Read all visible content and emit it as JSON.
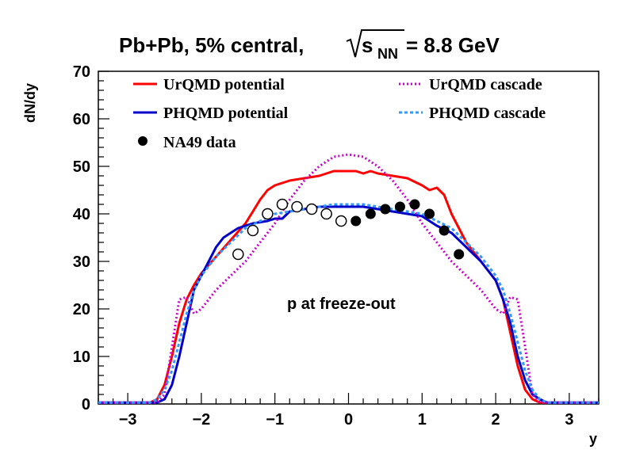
{
  "chart_data": {
    "type": "line",
    "title_main": "Pb+Pb, 5% central,",
    "title_sqrt_symbol": "s",
    "title_sqrt_sub": "NN",
    "title_tail": "= 8.8 GeV",
    "xlabel": "y",
    "ylabel": "dN/dy",
    "xlim": [
      -3.4,
      3.4
    ],
    "ylim": [
      0,
      70
    ],
    "x_ticks": [
      -3,
      -2,
      -1,
      0,
      1,
      2,
      3
    ],
    "x_tick_labels": [
      "−3",
      "−2",
      "−1",
      "0",
      "1",
      "2",
      "3"
    ],
    "y_ticks": [
      0,
      10,
      20,
      30,
      40,
      50,
      60,
      70
    ],
    "y_tick_labels": [
      "0",
      "10",
      "20",
      "30",
      "40",
      "50",
      "60",
      "70"
    ],
    "annotation": "p at freeze-out",
    "grid": false,
    "legend_placement": "top",
    "series": [
      {
        "name": "UrQMD potential",
        "color": "#ff0000",
        "style": "solid",
        "points": [
          [
            -3.4,
            0.3
          ],
          [
            -2.7,
            0.3
          ],
          [
            -2.6,
            1
          ],
          [
            -2.5,
            4
          ],
          [
            -2.4,
            10
          ],
          [
            -2.3,
            17
          ],
          [
            -2.2,
            22
          ],
          [
            -2.1,
            25
          ],
          [
            -2.0,
            27.5
          ],
          [
            -1.8,
            31
          ],
          [
            -1.6,
            34.5
          ],
          [
            -1.4,
            38
          ],
          [
            -1.3,
            40.5
          ],
          [
            -1.2,
            43
          ],
          [
            -1.1,
            45
          ],
          [
            -1.0,
            46
          ],
          [
            -0.8,
            47
          ],
          [
            -0.6,
            47.5
          ],
          [
            -0.4,
            48
          ],
          [
            -0.3,
            48.5
          ],
          [
            -0.2,
            49
          ],
          [
            0,
            49
          ],
          [
            0.1,
            49
          ],
          [
            0.2,
            48.5
          ],
          [
            0.3,
            49
          ],
          [
            0.4,
            48.5
          ],
          [
            0.6,
            48
          ],
          [
            0.8,
            47.5
          ],
          [
            1.0,
            46
          ],
          [
            1.1,
            45
          ],
          [
            1.2,
            45.5
          ],
          [
            1.3,
            44
          ],
          [
            1.4,
            40
          ],
          [
            1.5,
            37
          ],
          [
            1.6,
            34
          ],
          [
            1.8,
            30
          ],
          [
            2.0,
            26
          ],
          [
            2.1,
            22
          ],
          [
            2.2,
            15
          ],
          [
            2.3,
            8
          ],
          [
            2.4,
            3
          ],
          [
            2.5,
            1
          ],
          [
            2.6,
            0.3
          ],
          [
            3.4,
            0.3
          ]
        ]
      },
      {
        "name": "PHQMD potential",
        "color": "#0000c8",
        "style": "solid",
        "points": [
          [
            -3.4,
            0.3
          ],
          [
            -2.6,
            0.3
          ],
          [
            -2.5,
            1
          ],
          [
            -2.4,
            4
          ],
          [
            -2.3,
            10
          ],
          [
            -2.2,
            17
          ],
          [
            -2.1,
            24
          ],
          [
            -2.0,
            27
          ],
          [
            -1.9,
            30
          ],
          [
            -1.8,
            33
          ],
          [
            -1.7,
            35
          ],
          [
            -1.6,
            36
          ],
          [
            -1.5,
            37
          ],
          [
            -1.4,
            37.5
          ],
          [
            -1.3,
            38
          ],
          [
            -1.1,
            38.5
          ],
          [
            -1.0,
            39
          ],
          [
            -0.9,
            39
          ],
          [
            -0.8,
            40.5
          ],
          [
            -0.6,
            41
          ],
          [
            -0.4,
            41.5
          ],
          [
            -0.2,
            41.5
          ],
          [
            0,
            41.5
          ],
          [
            0.2,
            41.5
          ],
          [
            0.4,
            41
          ],
          [
            0.6,
            40.5
          ],
          [
            0.8,
            40
          ],
          [
            1.0,
            39.5
          ],
          [
            1.1,
            38.5
          ],
          [
            1.2,
            37.5
          ],
          [
            1.4,
            36
          ],
          [
            1.6,
            33
          ],
          [
            1.8,
            30
          ],
          [
            1.9,
            28
          ],
          [
            2.0,
            26
          ],
          [
            2.1,
            22
          ],
          [
            2.2,
            17
          ],
          [
            2.3,
            10
          ],
          [
            2.4,
            5
          ],
          [
            2.5,
            2
          ],
          [
            2.6,
            1
          ],
          [
            2.7,
            0.3
          ],
          [
            3.4,
            0.3
          ]
        ]
      },
      {
        "name": "UrQMD cascade",
        "color": "#cc00cc",
        "style": "dotted",
        "points": [
          [
            -3.4,
            0.3
          ],
          [
            -2.6,
            0.3
          ],
          [
            -2.5,
            2
          ],
          [
            -2.4,
            12
          ],
          [
            -2.3,
            22
          ],
          [
            -2.2,
            22.5
          ],
          [
            -2.1,
            19
          ],
          [
            -2.0,
            20
          ],
          [
            -1.8,
            24
          ],
          [
            -1.6,
            27
          ],
          [
            -1.4,
            30
          ],
          [
            -1.2,
            34
          ],
          [
            -1.0,
            38
          ],
          [
            -0.8,
            43
          ],
          [
            -0.6,
            47
          ],
          [
            -0.4,
            50
          ],
          [
            -0.2,
            52
          ],
          [
            0,
            52.5
          ],
          [
            0.2,
            52
          ],
          [
            0.4,
            50
          ],
          [
            0.6,
            47
          ],
          [
            0.8,
            43
          ],
          [
            1.0,
            38
          ],
          [
            1.2,
            34
          ],
          [
            1.4,
            30
          ],
          [
            1.6,
            27
          ],
          [
            1.8,
            24
          ],
          [
            2.0,
            20
          ],
          [
            2.1,
            19
          ],
          [
            2.2,
            22.5
          ],
          [
            2.3,
            22
          ],
          [
            2.4,
            12
          ],
          [
            2.5,
            2
          ],
          [
            2.6,
            0.3
          ],
          [
            3.4,
            0.3
          ]
        ]
      },
      {
        "name": "PHQMD cascade",
        "color": "#3399ff",
        "style": "dashed",
        "points": [
          [
            -3.4,
            0.3
          ],
          [
            -2.7,
            0.3
          ],
          [
            -2.6,
            1
          ],
          [
            -2.5,
            3
          ],
          [
            -2.4,
            7
          ],
          [
            -2.3,
            13
          ],
          [
            -2.2,
            19
          ],
          [
            -2.1,
            24
          ],
          [
            -2.0,
            27
          ],
          [
            -1.8,
            31
          ],
          [
            -1.6,
            34
          ],
          [
            -1.4,
            37
          ],
          [
            -1.2,
            38.5
          ],
          [
            -1.0,
            40
          ],
          [
            -0.8,
            40.5
          ],
          [
            -0.6,
            41
          ],
          [
            -0.4,
            41.5
          ],
          [
            -0.2,
            42
          ],
          [
            0,
            42
          ],
          [
            0.2,
            42
          ],
          [
            0.4,
            41.5
          ],
          [
            0.6,
            41
          ],
          [
            0.8,
            40.5
          ],
          [
            1.0,
            40
          ],
          [
            1.2,
            38.5
          ],
          [
            1.4,
            37
          ],
          [
            1.6,
            34
          ],
          [
            1.8,
            31
          ],
          [
            2.0,
            27
          ],
          [
            2.1,
            24
          ],
          [
            2.2,
            19
          ],
          [
            2.3,
            13
          ],
          [
            2.4,
            7
          ],
          [
            2.5,
            3
          ],
          [
            2.6,
            1
          ],
          [
            2.7,
            0.3
          ],
          [
            3.4,
            0.3
          ]
        ]
      }
    ],
    "data_points": {
      "name": "NA49 data",
      "color": "#000000",
      "filled": [
        [
          0.1,
          38.5
        ],
        [
          0.3,
          40
        ],
        [
          0.5,
          41
        ],
        [
          0.7,
          41.5
        ],
        [
          0.9,
          42
        ],
        [
          1.1,
          40
        ],
        [
          1.3,
          36.5
        ],
        [
          1.5,
          31.5
        ]
      ],
      "open": [
        [
          -1.5,
          31.5
        ],
        [
          -1.3,
          36.5
        ],
        [
          -1.1,
          40
        ],
        [
          -0.9,
          42
        ],
        [
          -0.7,
          41.5
        ],
        [
          -0.5,
          41
        ],
        [
          -0.3,
          40
        ],
        [
          -0.1,
          38.5
        ]
      ]
    }
  }
}
